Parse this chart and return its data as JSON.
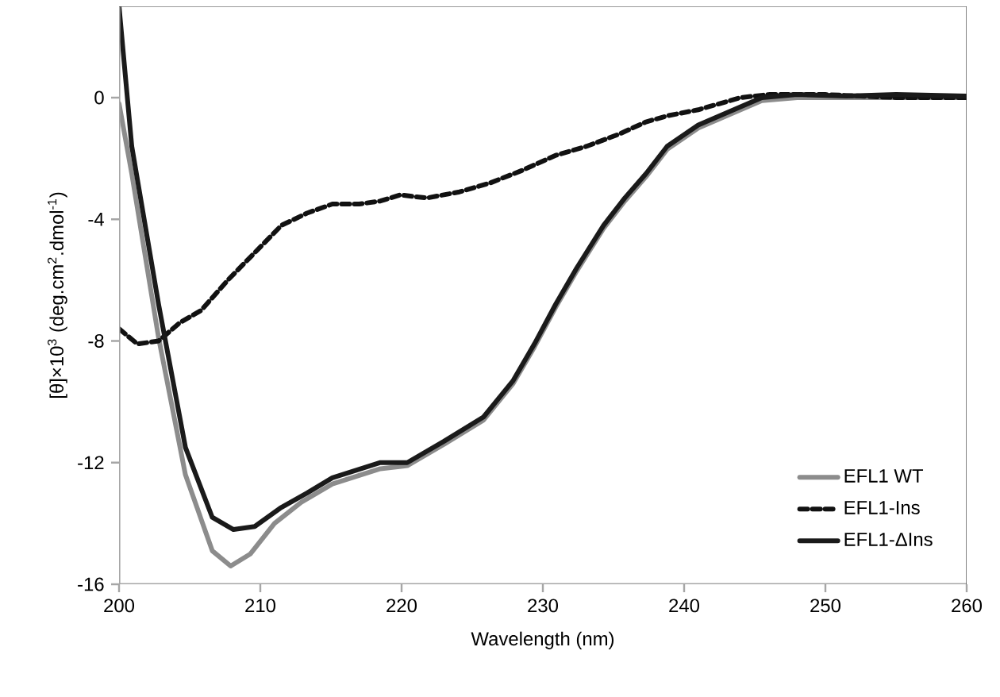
{
  "chart_data": {
    "type": "line",
    "xlabel": "Wavelength (nm)",
    "ylabel": "[θ]×10$^{3}$ (deg.cm$^{2}$.dmol$^{-1}$)",
    "xlim": [
      200,
      260
    ],
    "ylim": [
      -16,
      3
    ],
    "xticks": [
      200,
      210,
      220,
      230,
      240,
      250,
      260
    ],
    "yticks": [
      0,
      -4,
      -8,
      -12,
      -16
    ],
    "grid": false,
    "legend": "bottom right",
    "series": [
      {
        "name": "EFL1 WT",
        "color": "#8c8c8c",
        "line_style": "solid",
        "x": [
          200,
          200.9,
          202.8,
          204.7,
          206.6,
          207.9,
          209.3,
          211,
          212.9,
          215.1,
          218.5,
          220.4,
          223,
          225.8,
          227.9,
          229.4,
          230.9,
          232.4,
          234.3,
          235.8,
          237.3,
          238.8,
          241,
          244,
          245.5,
          248,
          251.5,
          255,
          260
        ],
        "values": [
          -0.2,
          -2.5,
          -7.9,
          -12.4,
          -14.9,
          -15.4,
          -15,
          -14,
          -13.3,
          -12.7,
          -12.2,
          -12.1,
          -11.4,
          -10.6,
          -9.4,
          -8.2,
          -6.9,
          -5.7,
          -4.3,
          -3.4,
          -2.6,
          -1.7,
          -1,
          -0.4,
          -0.1,
          0,
          0,
          0,
          0
        ]
      },
      {
        "name": "EFL1-Ins",
        "color": "#111111",
        "line_style": "dashed",
        "x": [
          200,
          201.3,
          202.8,
          204.3,
          205.8,
          207.7,
          209.6,
          211.5,
          213.3,
          215.1,
          217,
          218.5,
          219.9,
          221.8,
          224.1,
          226.3,
          228.5,
          230.9,
          233.1,
          235.4,
          237.3,
          238.8,
          241,
          244,
          246,
          250,
          255,
          260
        ],
        "values": [
          -7.6,
          -8.1,
          -8,
          -7.4,
          -7,
          -6,
          -5.1,
          -4.2,
          -3.8,
          -3.5,
          -3.5,
          -3.4,
          -3.2,
          -3.3,
          -3.1,
          -2.8,
          -2.4,
          -1.9,
          -1.6,
          -1.2,
          -0.8,
          -0.6,
          -0.4,
          0,
          0.1,
          0.1,
          0,
          0
        ]
      },
      {
        "name": "EFL1-ΔIns",
        "color": "#1a1a1a",
        "line_style": "solid",
        "x": [
          200,
          200.9,
          202.8,
          204.7,
          206.6,
          208.1,
          209.6,
          211.4,
          213.3,
          215.1,
          218.5,
          220.4,
          223,
          225.8,
          227.9,
          229.4,
          230.9,
          232.4,
          234.3,
          235.8,
          237.3,
          238.8,
          241,
          244,
          245.5,
          248,
          251.5,
          255,
          260
        ],
        "values": [
          3,
          -1.6,
          -6.8,
          -11.5,
          -13.8,
          -14.2,
          -14.1,
          -13.5,
          -13,
          -12.5,
          -12,
          -12,
          -11.3,
          -10.5,
          -9.3,
          -8.1,
          -6.8,
          -5.6,
          -4.2,
          -3.3,
          -2.5,
          -1.6,
          -0.9,
          -0.3,
          0,
          0.1,
          0.05,
          0.1,
          0.05
        ]
      }
    ]
  }
}
